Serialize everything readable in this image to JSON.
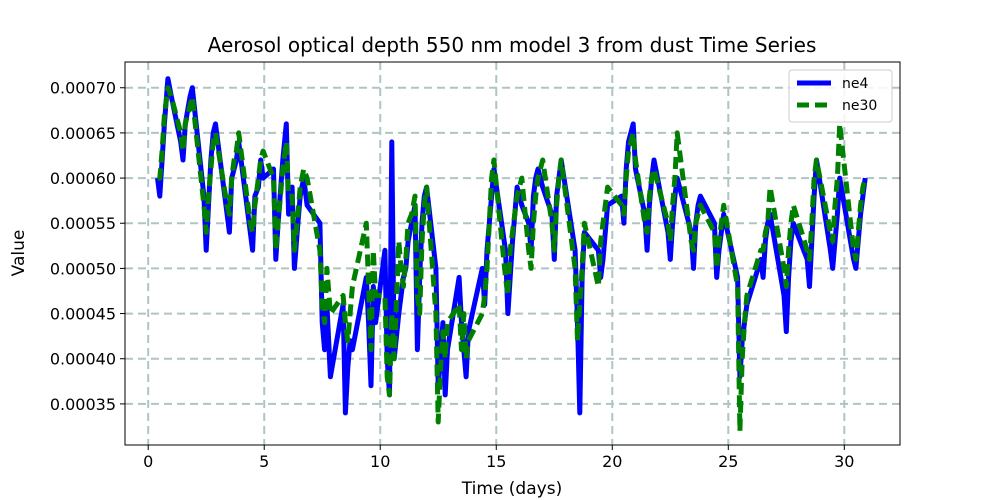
{
  "chart_data": {
    "type": "line",
    "title": "Aerosol optical depth 550 nm model 3 from dust Time Series",
    "xlabel": "Time (days)",
    "ylabel": "Value",
    "xlim": [
      -1.0,
      32.4
    ],
    "ylim": [
      0.0003045,
      0.0007285
    ],
    "xticks": [
      0,
      5,
      10,
      15,
      20,
      25,
      30
    ],
    "xtick_labels": [
      "0",
      "5",
      "10",
      "15",
      "20",
      "25",
      "30"
    ],
    "yticks": [
      0.00035,
      0.0004,
      0.00045,
      0.0005,
      0.00055,
      0.0006,
      0.00065,
      0.0007
    ],
    "ytick_labels": [
      "0.00035",
      "0.00040",
      "0.00045",
      "0.00050",
      "0.00055",
      "0.00060",
      "0.00065",
      "0.00070"
    ],
    "grid": true,
    "legend_position": "top-right",
    "colors": {
      "ne4": "#0000ff",
      "ne30": "#008000",
      "grid": "#b0c4c4"
    },
    "series": [
      {
        "name": "ne4",
        "style": "solid",
        "x": [
          0.4,
          0.5,
          0.6,
          0.7,
          0.85,
          1.0,
          1.4,
          1.5,
          1.6,
          1.8,
          1.9,
          2.4,
          2.5,
          2.6,
          2.7,
          2.8,
          2.9,
          3.4,
          3.5,
          3.6,
          3.7,
          3.8,
          3.9,
          4.4,
          4.5,
          4.6,
          4.75,
          4.85,
          4.95,
          5.4,
          5.5,
          5.6,
          5.8,
          5.95,
          6.05,
          6.2,
          6.3,
          6.45,
          6.55,
          6.7,
          6.85,
          7.4,
          7.5,
          7.6,
          7.7,
          7.85,
          8.4,
          8.5,
          8.6,
          8.7,
          8.8,
          9.4,
          9.5,
          9.6,
          9.7,
          9.8,
          10.2,
          10.3,
          10.4,
          10.5,
          10.6,
          10.8,
          10.9,
          11.0,
          11.1,
          11.2,
          11.35,
          11.5,
          11.6,
          11.7,
          11.8,
          11.9,
          12.0,
          12.4,
          12.5,
          12.6,
          12.7,
          12.8,
          12.9,
          13.4,
          13.5,
          13.6,
          13.7,
          13.8,
          14.4,
          14.5,
          14.6,
          14.7,
          14.8,
          14.9,
          15.4,
          15.5,
          15.6,
          15.7,
          15.9,
          16.1,
          16.4,
          16.5,
          16.6,
          16.7,
          16.8,
          17.0,
          17.4,
          17.5,
          17.6,
          17.7,
          17.8,
          18.4,
          18.5,
          18.6,
          18.7,
          18.8,
          19.4,
          19.5,
          19.6,
          19.7,
          19.8,
          20.4,
          20.5,
          20.6,
          20.7,
          20.9,
          21.0,
          21.4,
          21.5,
          21.6,
          21.7,
          21.8,
          22.4,
          22.5,
          22.6,
          22.7,
          22.8,
          23.4,
          23.5,
          23.6,
          23.7,
          23.8,
          24.4,
          24.5,
          24.6,
          24.7,
          24.8,
          25.4,
          25.5,
          25.6,
          25.7,
          25.8,
          26.4,
          26.5,
          26.6,
          26.7,
          26.8,
          27.4,
          27.5,
          27.6,
          27.7,
          27.8,
          28.4,
          28.5,
          28.6,
          28.7,
          28.8,
          29.4,
          29.5,
          29.6,
          29.7,
          29.8,
          30.4,
          30.5,
          30.6,
          30.7,
          30.8,
          30.9
        ],
        "y": [
          0.0006,
          0.00058,
          0.00062,
          0.00066,
          0.00071,
          0.00069,
          0.00064,
          0.00062,
          0.00066,
          0.00069,
          0.0007,
          0.00058,
          0.00052,
          0.00057,
          0.00062,
          0.00065,
          0.00066,
          0.00056,
          0.00054,
          0.0006,
          0.00061,
          0.00062,
          0.00064,
          0.00054,
          0.00052,
          0.00058,
          0.00059,
          0.00062,
          0.0006,
          0.00061,
          0.00051,
          0.00055,
          0.00062,
          0.00066,
          0.00056,
          0.00059,
          0.0005,
          0.00055,
          0.00058,
          0.0006,
          0.00057,
          0.00055,
          0.00044,
          0.00041,
          0.00046,
          0.00038,
          0.00046,
          0.00034,
          0.00039,
          0.00042,
          0.00041,
          0.00049,
          0.00044,
          0.00037,
          0.00048,
          0.00044,
          0.00052,
          0.0004,
          0.00036,
          0.00064,
          0.0004,
          0.00045,
          0.00047,
          0.00049,
          0.0005,
          0.00053,
          0.00055,
          0.00057,
          0.00041,
          0.00049,
          0.00055,
          0.00058,
          0.00059,
          0.0005,
          0.00037,
          0.0004,
          0.00044,
          0.00036,
          0.00041,
          0.00049,
          0.00044,
          0.00041,
          0.00038,
          0.00043,
          0.0005,
          0.00046,
          0.00052,
          0.00055,
          0.00058,
          0.00061,
          0.00052,
          0.00045,
          0.00049,
          0.00053,
          0.00059,
          0.00057,
          0.00055,
          0.00052,
          0.00058,
          0.0006,
          0.00061,
          0.00059,
          0.00056,
          0.00051,
          0.00058,
          0.0006,
          0.00062,
          0.00052,
          0.00044,
          0.00034,
          0.00049,
          0.00054,
          0.00052,
          0.00049,
          0.00051,
          0.00054,
          0.00057,
          0.00058,
          0.00055,
          0.00061,
          0.00064,
          0.00066,
          0.00061,
          0.00056,
          0.00052,
          0.00057,
          0.0006,
          0.00062,
          0.00054,
          0.00051,
          0.00055,
          0.00058,
          0.0006,
          0.00054,
          0.0005,
          0.00055,
          0.00057,
          0.00058,
          0.00055,
          0.00049,
          0.00052,
          0.00054,
          0.00056,
          0.00049,
          0.00038,
          0.00042,
          0.00044,
          0.00046,
          0.00051,
          0.00049,
          0.00053,
          0.00055,
          0.00056,
          0.00047,
          0.00043,
          0.00049,
          0.00053,
          0.00055,
          0.00051,
          0.00048,
          0.00053,
          0.00058,
          0.00062,
          0.00052,
          0.0005,
          0.00053,
          0.00056,
          0.0006,
          0.00051,
          0.0005,
          0.00053,
          0.00056,
          0.00058,
          0.0006
        ]
      },
      {
        "name": "ne30",
        "style": "dashed",
        "x": [
          0.4,
          0.5,
          0.6,
          0.7,
          0.85,
          1.0,
          1.4,
          1.5,
          1.6,
          1.8,
          1.9,
          2.4,
          2.5,
          2.6,
          2.7,
          2.8,
          2.9,
          3.4,
          3.5,
          3.6,
          3.7,
          3.8,
          3.9,
          4.4,
          4.5,
          4.6,
          4.75,
          4.85,
          4.95,
          5.4,
          5.5,
          5.6,
          5.8,
          5.95,
          6.05,
          6.2,
          6.3,
          6.45,
          6.55,
          6.7,
          6.85,
          7.4,
          7.5,
          7.6,
          7.7,
          7.85,
          8.4,
          8.5,
          8.6,
          8.7,
          8.8,
          9.4,
          9.5,
          9.6,
          9.7,
          9.8,
          10.2,
          10.3,
          10.4,
          10.5,
          10.6,
          10.8,
          10.9,
          11.0,
          11.1,
          11.2,
          11.35,
          11.5,
          11.6,
          11.7,
          11.8,
          11.9,
          12.0,
          12.4,
          12.5,
          12.6,
          12.7,
          12.8,
          12.9,
          13.4,
          13.5,
          13.6,
          13.7,
          13.8,
          14.4,
          14.5,
          14.6,
          14.7,
          14.8,
          14.9,
          15.4,
          15.5,
          15.6,
          15.7,
          15.9,
          16.1,
          16.4,
          16.5,
          16.6,
          16.7,
          16.8,
          17.0,
          17.4,
          17.5,
          17.6,
          17.7,
          17.8,
          18.4,
          18.5,
          18.6,
          18.7,
          18.8,
          19.4,
          19.5,
          19.6,
          19.7,
          19.8,
          20.4,
          20.5,
          20.6,
          20.7,
          20.9,
          21.0,
          21.4,
          21.5,
          21.6,
          21.7,
          21.8,
          22.4,
          22.5,
          22.6,
          22.7,
          22.8,
          23.4,
          23.5,
          23.6,
          23.7,
          23.8,
          24.4,
          24.5,
          24.6,
          24.7,
          24.8,
          25.4,
          25.5,
          25.6,
          25.7,
          25.8,
          26.4,
          26.5,
          26.6,
          26.7,
          26.8,
          27.4,
          27.5,
          27.6,
          27.7,
          27.8,
          28.4,
          28.5,
          28.6,
          28.7,
          28.8,
          29.4,
          29.5,
          29.6,
          29.7,
          29.8,
          30.4,
          30.5,
          30.6,
          30.7,
          30.8,
          30.9
        ],
        "y": [
          0.0006,
          0.0006,
          0.00063,
          0.00067,
          0.0007,
          0.00069,
          0.00065,
          0.00063,
          0.00066,
          0.00068,
          0.00069,
          0.00057,
          0.00054,
          0.00058,
          0.00061,
          0.00064,
          0.00065,
          0.00057,
          0.00056,
          0.0006,
          0.00062,
          0.00063,
          0.00065,
          0.00055,
          0.00054,
          0.00057,
          0.0006,
          0.00062,
          0.00063,
          0.0006,
          0.00052,
          0.00055,
          0.00061,
          0.00064,
          0.00058,
          0.00058,
          0.00052,
          0.00056,
          0.00059,
          0.00061,
          0.0006,
          0.00052,
          0.00046,
          0.00044,
          0.0005,
          0.00045,
          0.00047,
          0.00044,
          0.00042,
          0.00045,
          0.00048,
          0.00055,
          0.00048,
          0.00041,
          0.00052,
          0.00047,
          0.00047,
          0.00038,
          0.00036,
          0.00045,
          0.0004,
          0.00053,
          0.0005,
          0.00048,
          0.00051,
          0.00055,
          0.00056,
          0.00058,
          0.00047,
          0.00045,
          0.00053,
          0.00057,
          0.00059,
          0.00045,
          0.00033,
          0.00039,
          0.00043,
          0.0004,
          0.00044,
          0.00046,
          0.00041,
          0.00045,
          0.0004,
          0.00042,
          0.00045,
          0.00047,
          0.0005,
          0.00055,
          0.0006,
          0.00062,
          0.00049,
          0.00047,
          0.00052,
          0.00054,
          0.00058,
          0.0006,
          0.00052,
          0.0005,
          0.00055,
          0.00058,
          0.0006,
          0.00062,
          0.00055,
          0.00052,
          0.00057,
          0.0006,
          0.00062,
          0.0005,
          0.00042,
          0.00046,
          0.0005,
          0.00055,
          0.00048,
          0.00053,
          0.00055,
          0.00057,
          0.00059,
          0.00057,
          0.00056,
          0.0006,
          0.00063,
          0.00065,
          0.00062,
          0.00055,
          0.00054,
          0.00058,
          0.0006,
          0.00061,
          0.00055,
          0.00053,
          0.00057,
          0.0006,
          0.00065,
          0.00053,
          0.00052,
          0.00055,
          0.00056,
          0.00057,
          0.00054,
          0.0005,
          0.00053,
          0.00055,
          0.00057,
          0.00048,
          0.00032,
          0.0004,
          0.00044,
          0.00047,
          0.00052,
          0.00052,
          0.00054,
          0.00055,
          0.00059,
          0.0005,
          0.00048,
          0.00052,
          0.00055,
          0.00057,
          0.00052,
          0.00051,
          0.00055,
          0.0006,
          0.00062,
          0.00054,
          0.00053,
          0.00057,
          0.0006,
          0.00066,
          0.00052,
          0.00051,
          0.00054,
          0.00057,
          0.00059,
          0.0006
        ]
      }
    ]
  }
}
